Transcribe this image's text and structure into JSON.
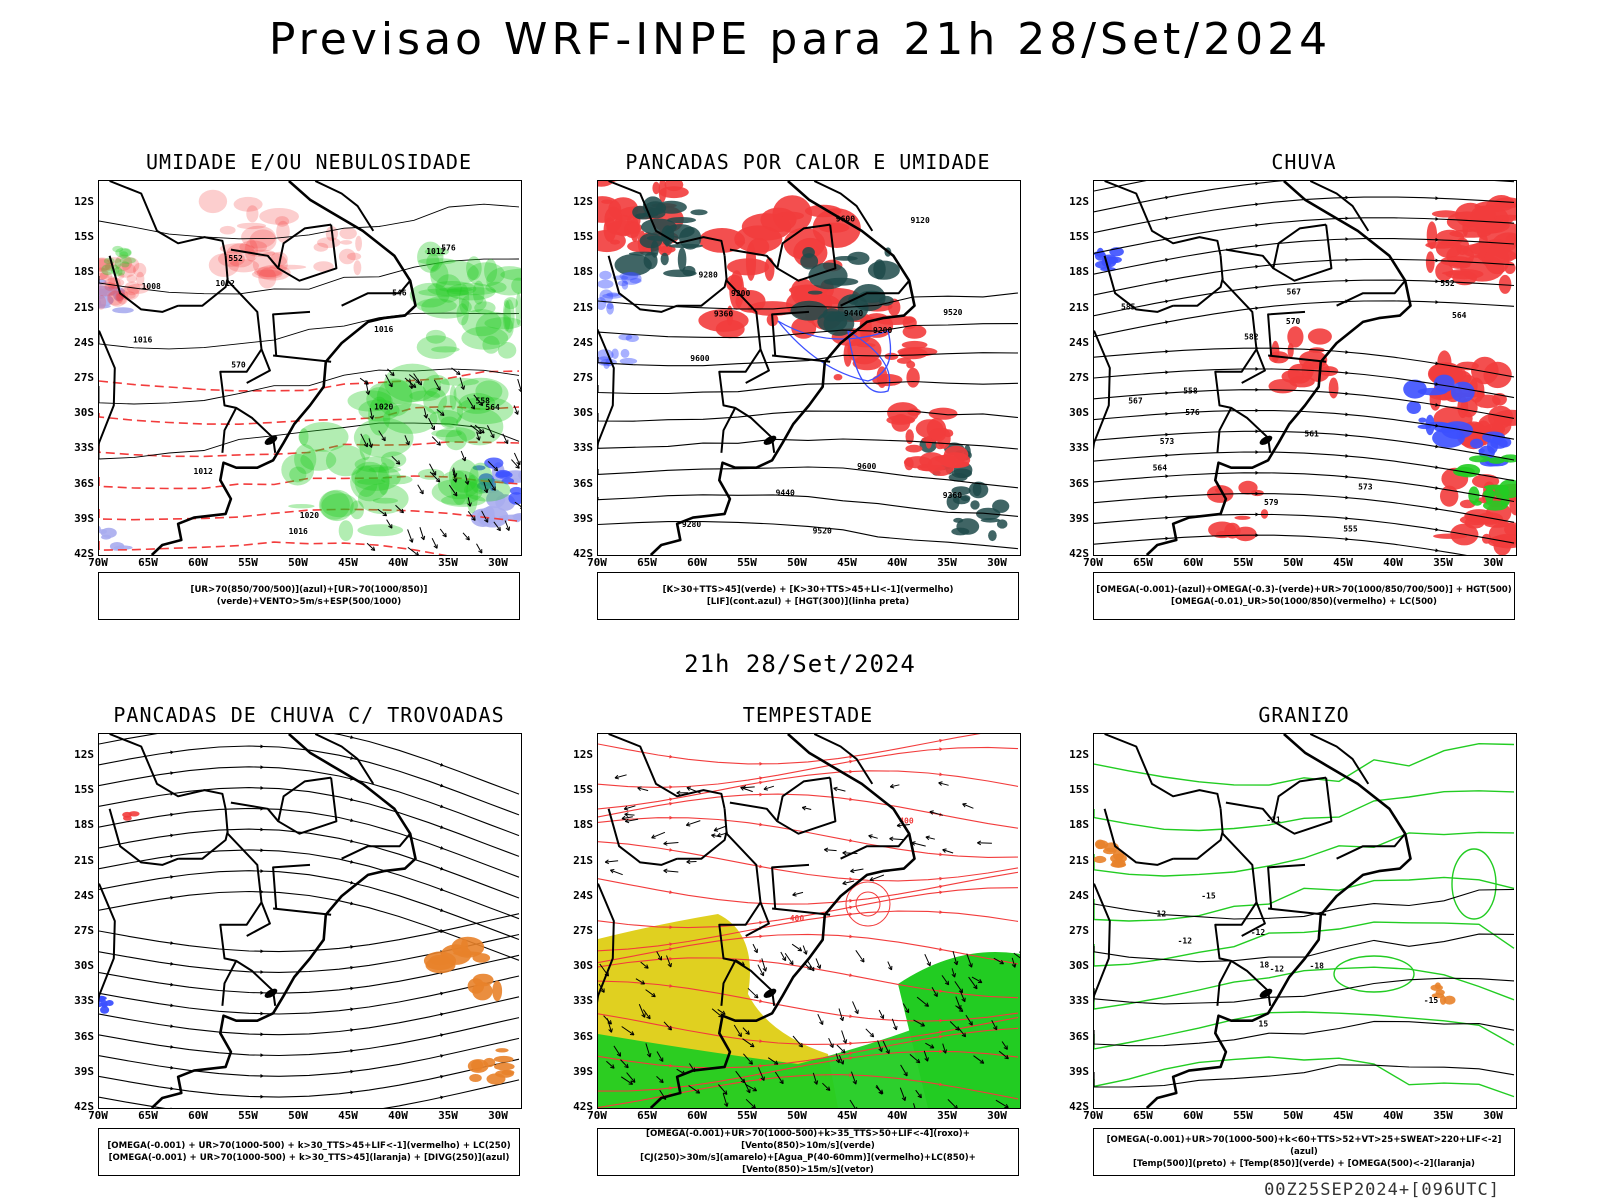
{
  "header": {
    "title": "Previsao WRF-INPE  para 21h 28/Set/2024"
  },
  "middle": {
    "title": "21h 28/Set/2024"
  },
  "footer": {
    "stamp": "00Z25SEP2024+[096UTC]"
  },
  "axes": {
    "lat_labels": [
      "12S",
      "15S",
      "18S",
      "21S",
      "24S",
      "27S",
      "30S",
      "33S",
      "36S",
      "39S",
      "42S"
    ],
    "lon_labels": [
      "70W",
      "65W",
      "60W",
      "55W",
      "50W",
      "45W",
      "40W",
      "35W",
      "30W"
    ]
  },
  "colors": {
    "red": "#f23c3c",
    "green": "#22cc22",
    "blue": "#3c50ff",
    "teal": "#1e4a4a",
    "yellow": "#e0d020",
    "orange": "#e8822a",
    "lightblue": "#a8acee"
  },
  "panels": [
    {
      "id": "umidade",
      "title": "UMIDADE E/OU NEBULOSIDADE",
      "legend": [
        "[UR>70(850/700/500)](azul)+[UR>70(1000/850)](verde)+VENTO>5m/s+ESP(500/1000)"
      ],
      "contour_labels": [
        "1008",
        "1012",
        "1016",
        "1020",
        "1012",
        "1016",
        "1020",
        "570",
        "576",
        "564",
        "558",
        "552",
        "546",
        "1012",
        "1016"
      ]
    },
    {
      "id": "pancadas-calor",
      "title": "PANCADAS POR CALOR E UMIDADE",
      "legend": [
        "[K>30+TTS>45](verde) + [K>30+TTS>45+LI<-1](vermelho)",
        "[LIF](cont.azul) + [HGT(300)](linha preta)"
      ],
      "contour_labels": [
        "9600",
        "9600",
        "9520",
        "9440",
        "9360",
        "9280",
        "9200",
        "9120",
        "9520",
        "9440",
        "9360",
        "9280",
        "9200",
        "9600"
      ]
    },
    {
      "id": "chuva",
      "title": "CHUVA",
      "legend": [
        "[OMEGA(-0.001)-(azul)+OMEGA(-0.3)-(verde)+UR>70(1000/850/700/500)] + HGT(500)",
        "[OMEGA(-0.01)_UR>50(1000/850)(vermelho) + LC(500)"
      ],
      "contour_labels": [
        "585",
        "582",
        "579",
        "576",
        "573",
        "570",
        "567",
        "564",
        "561",
        "558",
        "555",
        "552",
        "573",
        "567",
        "564"
      ]
    },
    {
      "id": "trovoadas",
      "title": "PANCADAS DE CHUVA C/ TROVOADAS",
      "legend": [
        "[OMEGA(-0.001) + UR>70(1000-500) + k>30_TTS>45+LIF<-1](vermelho) + LC(250)",
        "[OMEGA(-0.001) + UR>70(1000-500) + k>30_TTS>45](laranja) + [DIVG(250)](azul)"
      ],
      "contour_labels": []
    },
    {
      "id": "tempestade",
      "title": "TEMPESTADE",
      "legend": [
        "[OMEGA(-0.001)+UR>70(1000-500)+k>35_TTS>50+LIF<-4](roxo)+[Vento(850)>10m/s](verde)",
        "[CJ(250)>30m/s](amarelo)+[Agua_P(40-60mm)](vermelho)+LC(850)+[Vento(850)>15m/s](vetor)"
      ],
      "contour_labels": [
        "400",
        "400"
      ]
    },
    {
      "id": "granizo",
      "title": "GRANIZO",
      "legend": [
        "[OMEGA(-0.001)+UR>70(1000-500)+k<60+TTS>52+VT>25+SWEAT>220+LIF<-2](azul)",
        "[Temp(500)](preto) + [Temp(850)](verde) + [OMEGA(500)<-2](laranja)"
      ],
      "contour_labels": [
        "-12",
        "-12",
        "-15",
        "-18",
        "-21",
        "15",
        "12",
        "18",
        "-12",
        "-15"
      ]
    }
  ]
}
